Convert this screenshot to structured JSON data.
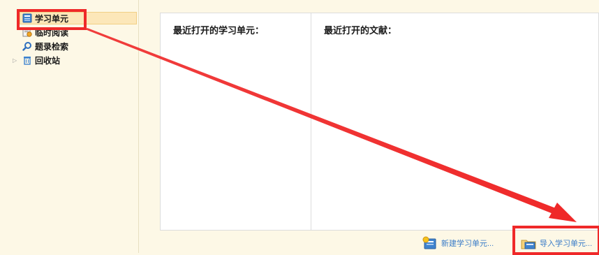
{
  "sidebar": {
    "items": [
      {
        "label": "学习单元",
        "icon": "study-unit-icon",
        "selected": true
      },
      {
        "label": "临时阅读",
        "icon": "temporary-reading-icon"
      },
      {
        "label": "题录检索",
        "icon": "search-icon"
      },
      {
        "label": "回收站",
        "icon": "recycle-bin-icon",
        "expandable": true
      }
    ]
  },
  "main": {
    "recent_units_title": "最近打开的学习单元：",
    "recent_docs_title": "最近打开的文献："
  },
  "actions": {
    "new_unit": {
      "label": "新建学习单元...",
      "icon": "new-unit-icon"
    },
    "import_unit": {
      "label": "导入学习单元...",
      "icon": "import-unit-icon"
    }
  },
  "colors": {
    "annotation": "#ef2929",
    "link": "#3a7cc8",
    "selected_bg": "#fce7b9",
    "panel_bg": "#fdf8e6"
  }
}
